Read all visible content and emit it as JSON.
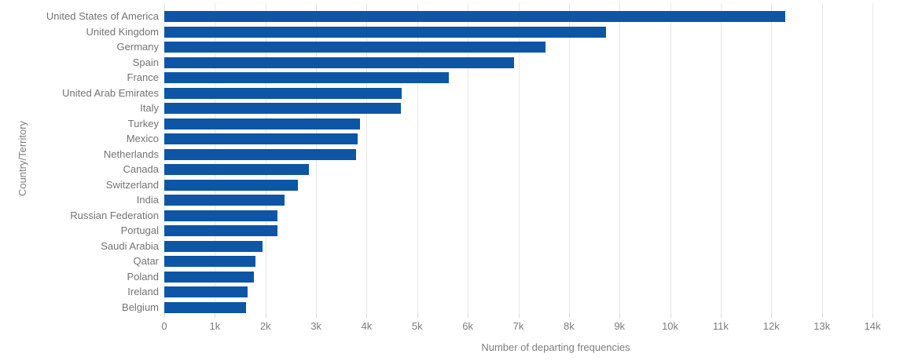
{
  "chart_data": {
    "type": "bar",
    "orientation": "horizontal",
    "title": "",
    "xlabel": "Number of departing frequencies",
    "ylabel": "Country/Territory",
    "categories": [
      "United States of America",
      "United Kingdom",
      "Germany",
      "Spain",
      "France",
      "United Arab Emirates",
      "Italy",
      "Turkey",
      "Mexico",
      "Netherlands",
      "Canada",
      "Switzerland",
      "India",
      "Russian Federation",
      "Portugal",
      "Saudi Arabia",
      "Qatar",
      "Poland",
      "Ireland",
      "Belgium"
    ],
    "values": [
      12280,
      8740,
      7530,
      6910,
      5630,
      4700,
      4670,
      3870,
      3830,
      3790,
      2860,
      2640,
      2370,
      2240,
      2230,
      1940,
      1800,
      1770,
      1650,
      1610
    ],
    "xlim": [
      0,
      14000
    ],
    "xticks": [
      {
        "value": 0,
        "label": "0"
      },
      {
        "value": 1000,
        "label": "1k"
      },
      {
        "value": 2000,
        "label": "2k"
      },
      {
        "value": 3000,
        "label": "3k"
      },
      {
        "value": 4000,
        "label": "4k"
      },
      {
        "value": 5000,
        "label": "5k"
      },
      {
        "value": 6000,
        "label": "6k"
      },
      {
        "value": 7000,
        "label": "7k"
      },
      {
        "value": 8000,
        "label": "8k"
      },
      {
        "value": 9000,
        "label": "9k"
      },
      {
        "value": 10000,
        "label": "10k"
      },
      {
        "value": 11000,
        "label": "11k"
      },
      {
        "value": 12000,
        "label": "12k"
      },
      {
        "value": 13000,
        "label": "13k"
      },
      {
        "value": 14000,
        "label": "14k"
      }
    ],
    "grid": true,
    "legend": false,
    "colors": {
      "bar": "#0d55a5",
      "grid": "#e7e7e7",
      "tick": "#d9d9d9",
      "text": "#7d7d7d"
    }
  }
}
